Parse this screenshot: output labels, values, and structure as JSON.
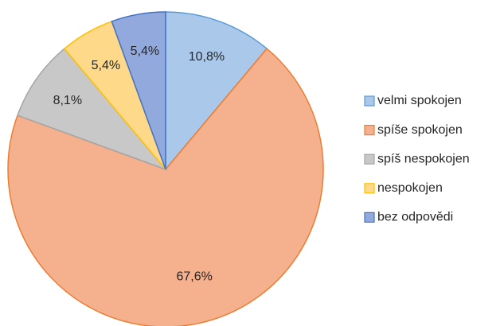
{
  "chart_data": {
    "type": "pie",
    "categories": [
      "velmi spokojen",
      "spíše spokojen",
      "spíš nespokojen",
      "nespokojen",
      "bez odpovědi"
    ],
    "values": [
      10.8,
      67.6,
      8.1,
      5.4,
      5.4
    ],
    "value_labels": [
      "10,8%",
      "67,6%",
      "8,1%",
      "5,4%",
      "5,4%"
    ],
    "colors": [
      "#a9c8ea",
      "#f5b08e",
      "#c8c8c8",
      "#ffd98a",
      "#91a9dc"
    ],
    "edge_colors": [
      "#5b9bd5",
      "#ed7d31",
      "#a5a5a5",
      "#ffc000",
      "#4472c4"
    ],
    "legend": "right"
  }
}
